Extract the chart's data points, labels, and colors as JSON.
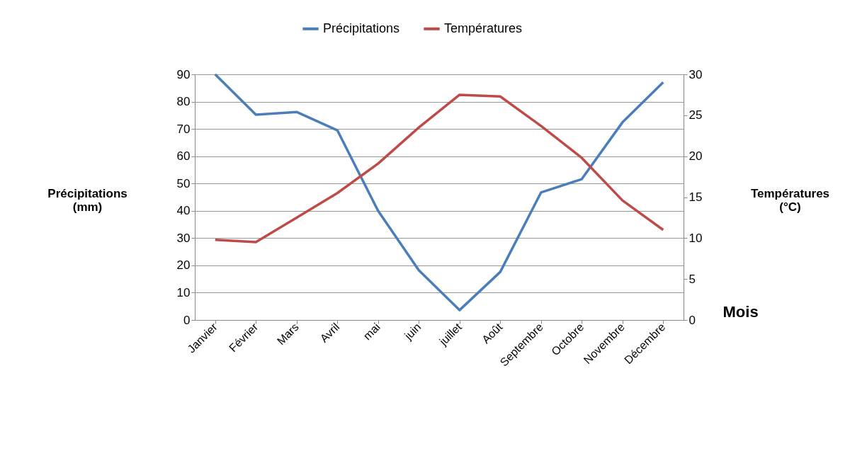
{
  "chart_data": {
    "type": "line",
    "categories": [
      "Janvier",
      "Février",
      "Mars",
      "Avril",
      "mai",
      "juin",
      "juillet",
      "Août",
      "Septembre",
      "Octobre",
      "Novembre",
      "Décembre"
    ],
    "series": [
      {
        "name": "Précipitations",
        "color": "#4a7ebb",
        "values": [
          90,
          75.2,
          76.2,
          69.5,
          40,
          18.2,
          3.6,
          17.6,
          46.7,
          51.6,
          72.4,
          87.1
        ]
      },
      {
        "name": "Températures",
        "color": "#be4b48",
        "axis": "y2",
        "values": [
          9.8,
          9.5,
          12.5,
          15.5,
          19.1,
          23.5,
          27.5,
          27.3,
          23.7,
          19.8,
          14.6,
          11.0
        ]
      }
    ],
    "ylabel": "Précipitations (mm)",
    "y2label": "Températures (°C)",
    "xlabel": "Mois",
    "ylim": [
      0,
      90
    ],
    "yticks": [
      0,
      10,
      20,
      30,
      40,
      50,
      60,
      70,
      80,
      90
    ],
    "y2lim": [
      0,
      30
    ],
    "y2ticks": [
      0,
      5,
      10,
      15,
      20,
      25,
      30
    ],
    "grid": "y",
    "legend": "top",
    "marker": "none",
    "line_style": "solid"
  }
}
